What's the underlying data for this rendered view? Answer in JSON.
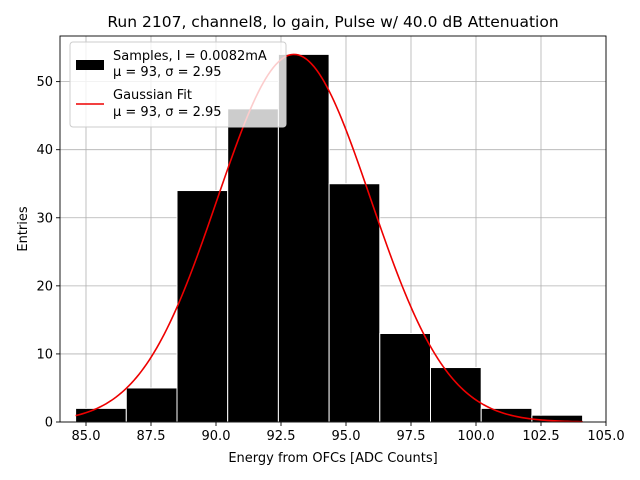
{
  "chart_data": {
    "type": "bar",
    "title": "Run 2107, channel8, lo gain, Pulse w/ 40.0 dB Attenuation",
    "xlabel": "Energy from OFCs [ADC Counts]",
    "ylabel": "Entries",
    "xlim": [
      84.0,
      105.0
    ],
    "ylim": [
      0,
      56.7
    ],
    "xticks": [
      85.0,
      87.5,
      90.0,
      92.5,
      95.0,
      97.5,
      100.0,
      102.5,
      105.0
    ],
    "xtick_labels": [
      "85.0",
      "87.5",
      "90.0",
      "92.5",
      "95.0",
      "97.5",
      "100.0",
      "102.5",
      "105.0"
    ],
    "yticks": [
      0,
      10,
      20,
      30,
      40,
      50
    ],
    "ytick_labels": [
      "0",
      "10",
      "20",
      "30",
      "40",
      "50"
    ],
    "grid": true,
    "bins": [
      {
        "left": 84.6,
        "right": 86.55,
        "count": 2
      },
      {
        "left": 86.55,
        "right": 88.5,
        "count": 5
      },
      {
        "left": 88.5,
        "right": 90.45,
        "count": 34
      },
      {
        "left": 90.45,
        "right": 92.4,
        "count": 46
      },
      {
        "left": 92.4,
        "right": 94.35,
        "count": 54
      },
      {
        "left": 94.35,
        "right": 96.3,
        "count": 35
      },
      {
        "left": 96.3,
        "right": 98.25,
        "count": 13
      },
      {
        "left": 98.25,
        "right": 100.2,
        "count": 8
      },
      {
        "left": 100.2,
        "right": 102.15,
        "count": 2
      },
      {
        "left": 102.15,
        "right": 104.1,
        "count": 1
      }
    ],
    "series": [
      {
        "name": "Samples, I = 0.0082mA",
        "kind": "histogram",
        "color": "#000000"
      },
      {
        "name": "Gaussian Fit",
        "kind": "line",
        "color": "#ee0000",
        "mu": 93,
        "sigma": 2.95,
        "amplitude": 54,
        "x_range": [
          84.6,
          104.1
        ]
      }
    ],
    "legend": {
      "placement": "top-left",
      "entries": [
        {
          "line1": "Samples, I = 0.0082mA",
          "line2": "μ = 93, σ = 2.95"
        },
        {
          "line1": "Gaussian Fit",
          "line2": "μ = 93, σ = 2.95"
        }
      ]
    }
  }
}
